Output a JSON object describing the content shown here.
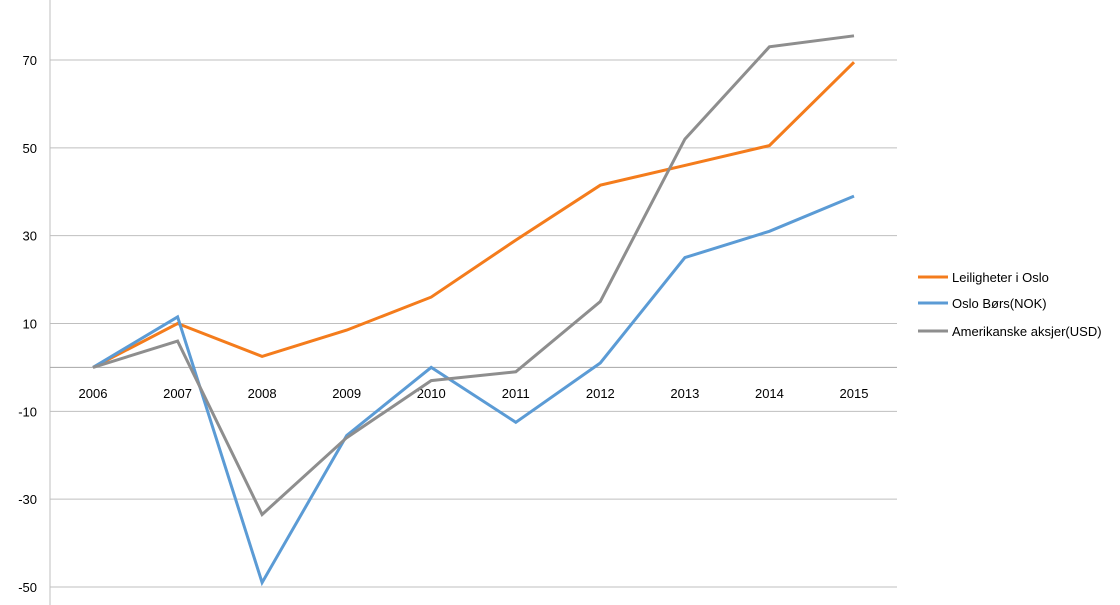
{
  "chart_data": {
    "type": "line",
    "title": "",
    "xlabel": "",
    "ylabel": "",
    "categories": [
      "2006",
      "2007",
      "2008",
      "2009",
      "2010",
      "2011",
      "2012",
      "2013",
      "2014",
      "2015"
    ],
    "ylim": [
      -50,
      80
    ],
    "y_ticks": [
      "70",
      "50",
      "30",
      "10",
      "-10",
      "-30",
      "-50"
    ],
    "grid": true,
    "legend_position": "right",
    "series": [
      {
        "name": "Leiligheter i Oslo",
        "color": "#f47c1c",
        "values": [
          0,
          10,
          2.5,
          8.5,
          16,
          29,
          41.5,
          46,
          50.5,
          69.5
        ]
      },
      {
        "name": "Oslo Børs(NOK)",
        "color": "#5b9bd5",
        "values": [
          0,
          11.5,
          -49,
          -15.5,
          0,
          -12.5,
          1,
          25,
          31,
          39
        ]
      },
      {
        "name": "Amerikanske aksjer(USD)",
        "color": "#8e8e8e",
        "values": [
          0,
          6,
          -33.5,
          -16,
          -3,
          -1,
          15,
          52,
          73,
          75.5
        ]
      }
    ]
  }
}
